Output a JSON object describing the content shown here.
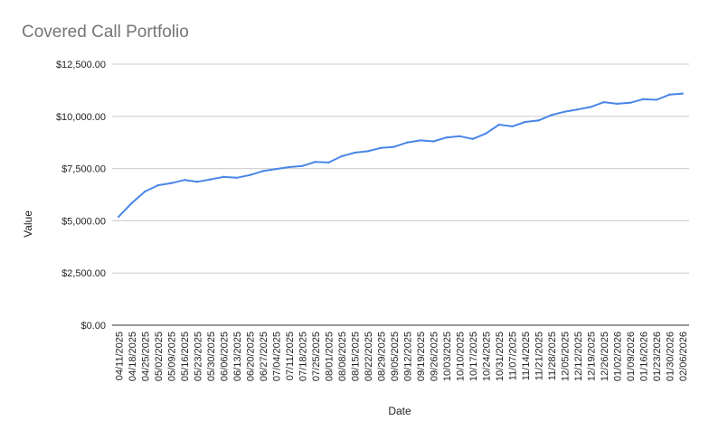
{
  "chart_data": {
    "type": "line",
    "title": "Covered Call Portfolio",
    "xlabel": "Date",
    "ylabel": "Value",
    "ylim": [
      0,
      12500
    ],
    "yticks": [
      "$0.00",
      "$2,500.00",
      "$5,000.00",
      "$7,500.00",
      "$10,000.00",
      "$12,500.00"
    ],
    "grid": true,
    "legend": "none",
    "line_color": "#4a86e8",
    "x": [
      "04/11/2025",
      "04/18/2025",
      "04/25/2025",
      "05/02/2025",
      "05/09/2025",
      "05/16/2025",
      "05/23/2025",
      "05/30/2025",
      "06/06/2025",
      "06/13/2025",
      "06/20/2025",
      "06/27/2025",
      "07/04/2025",
      "07/11/2025",
      "07/18/2025",
      "07/25/2025",
      "08/01/2025",
      "08/08/2025",
      "08/15/2025",
      "08/22/2025",
      "08/29/2025",
      "09/05/2025",
      "09/12/2025",
      "09/19/2025",
      "09/26/2025",
      "10/03/2025",
      "10/10/2025",
      "10/17/2025",
      "10/24/2025",
      "10/31/2025",
      "11/07/2025",
      "11/14/2025",
      "11/21/2025",
      "11/28/2025",
      "12/05/2025",
      "12/12/2025",
      "12/19/2025",
      "12/26/2025",
      "01/02/2026",
      "01/09/2026",
      "01/16/2026",
      "01/23/2026",
      "01/30/2026",
      "02/06/2026"
    ],
    "series": [
      {
        "values": [
          5200,
          5850,
          6400,
          6700,
          6800,
          6950,
          6870,
          6980,
          7100,
          7060,
          7190,
          7380,
          7480,
          7570,
          7620,
          7820,
          7790,
          8090,
          8260,
          8330,
          8490,
          8540,
          8750,
          8850,
          8800,
          8990,
          9050,
          8920,
          9180,
          9600,
          9520,
          9730,
          9800,
          10060,
          10220,
          10330,
          10450,
          10680,
          10600,
          10650,
          10820,
          10790,
          11040,
          11090
        ]
      }
    ]
  }
}
